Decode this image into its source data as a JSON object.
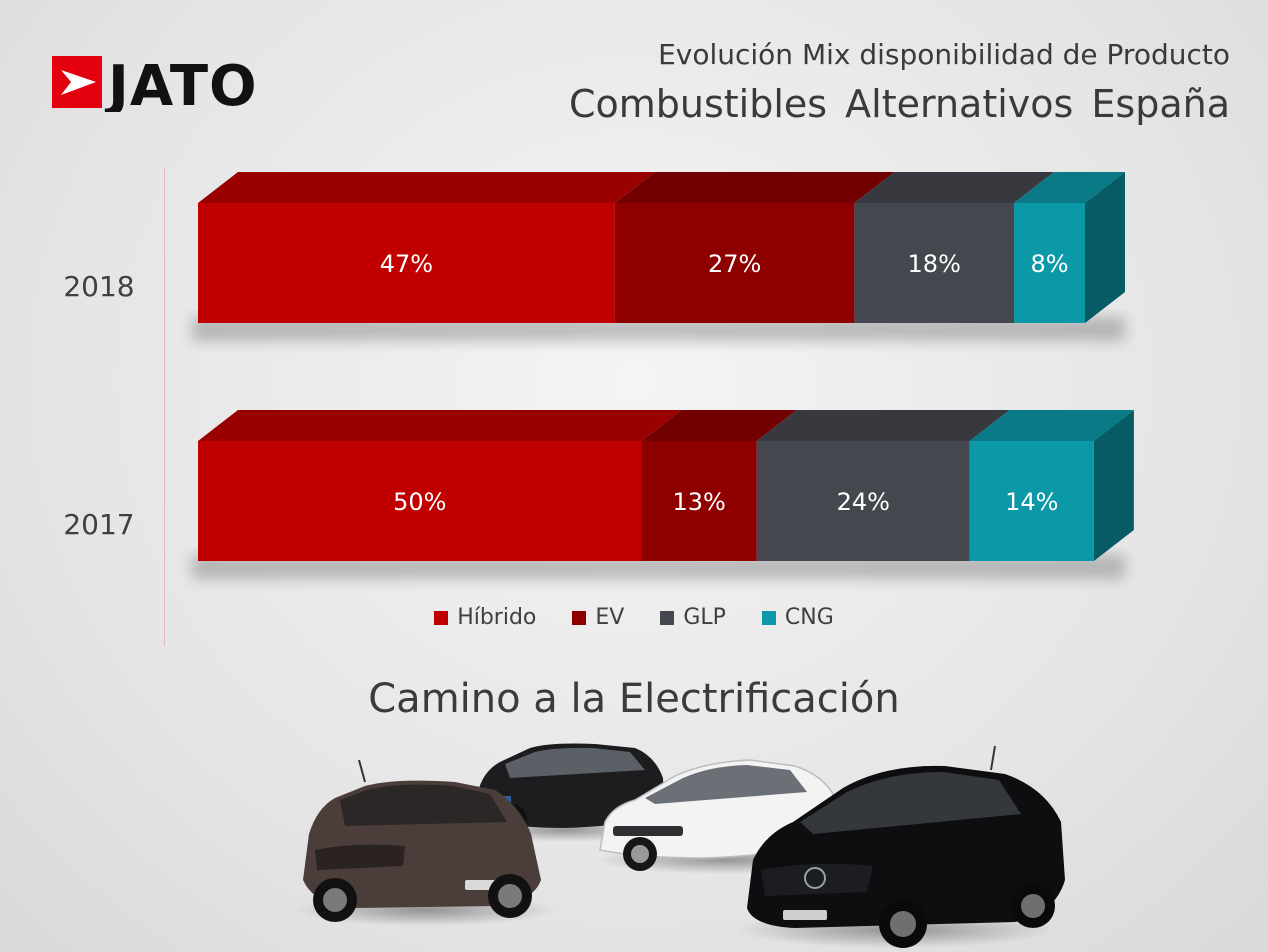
{
  "header": {
    "logo_text": "JATO",
    "subtitle": "Evolución Mix disponibilidad de Producto",
    "title": "Combustibles Alternativos España"
  },
  "chart_data": {
    "type": "bar",
    "orientation": "horizontal",
    "stacked": true,
    "percent_stacked": true,
    "style": "3d",
    "categories": [
      "2018",
      "2017"
    ],
    "series": [
      {
        "name": "Híbrido",
        "color": "#c00000",
        "values": [
          47,
          50
        ],
        "labels": [
          "47%",
          "50%"
        ]
      },
      {
        "name": "EV",
        "color": "#8e0000",
        "values": [
          27,
          13
        ],
        "labels": [
          "27%",
          "13%"
        ]
      },
      {
        "name": "GLP",
        "color": "#45474f",
        "values": [
          18,
          24
        ],
        "labels": [
          "18%",
          "24%"
        ]
      },
      {
        "name": "CNG",
        "color": "#0b98a7",
        "values": [
          8,
          14
        ],
        "labels": [
          "8%",
          "14%"
        ]
      }
    ],
    "xlim": [
      0,
      100
    ],
    "grid": false,
    "legend_position": "bottom"
  },
  "section_heading": "Camino a la Electrificación",
  "illustration": {
    "icon": "electric-cars-illustration"
  }
}
